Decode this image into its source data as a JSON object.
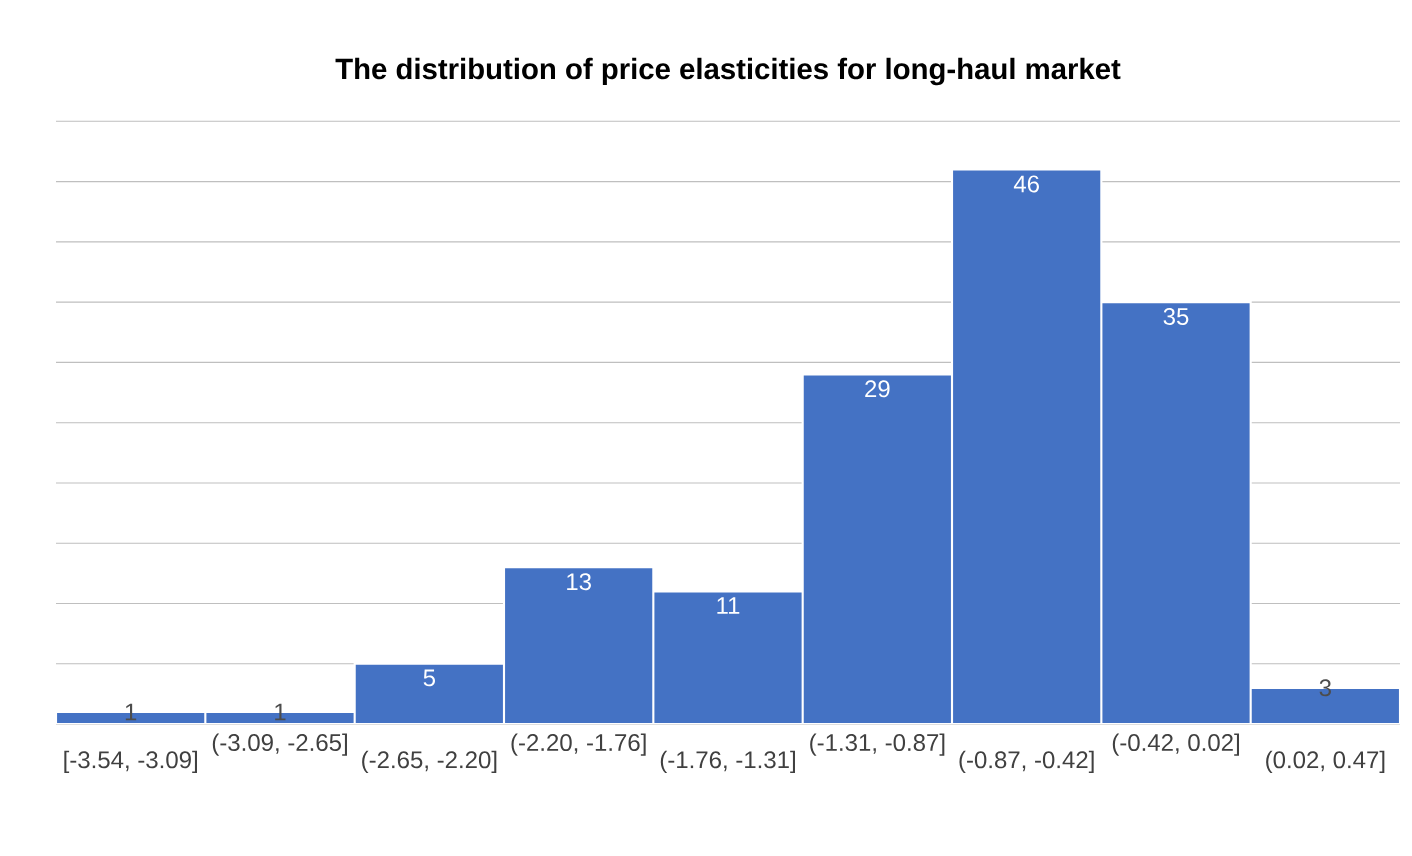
{
  "chart_data": {
    "type": "bar",
    "title": "The distribution of price elasticities for long-haul market",
    "categories": [
      "[-3.54, -3.09]",
      "(-3.09, -2.65]",
      "(-2.65, -2.20]",
      "(-2.20, -1.76]",
      "(-1.76, -1.31]",
      "(-1.31, -0.87]",
      "(-0.87, -0.42]",
      "(-0.42, 0.02]",
      "(0.02, 0.47]"
    ],
    "values": [
      1,
      1,
      5,
      13,
      11,
      29,
      46,
      35,
      3
    ],
    "color": "#4472c4",
    "data_labels": true,
    "ylim": [
      0,
      50
    ],
    "yticks": [
      {
        "value": 0,
        "label": null
      },
      {
        "value": 5,
        "label": null
      },
      {
        "value": 10,
        "label": null
      },
      {
        "value": 15,
        "label": null
      },
      {
        "value": 20,
        "label": null
      },
      {
        "value": 25,
        "label": null
      },
      {
        "value": 30,
        "label": null
      },
      {
        "value": 35,
        "label": null
      },
      {
        "value": 40,
        "label": null
      },
      {
        "value": 45,
        "label": null
      },
      {
        "value": 50,
        "label": null
      }
    ],
    "tick_labels": "x",
    "grid": "y"
  }
}
